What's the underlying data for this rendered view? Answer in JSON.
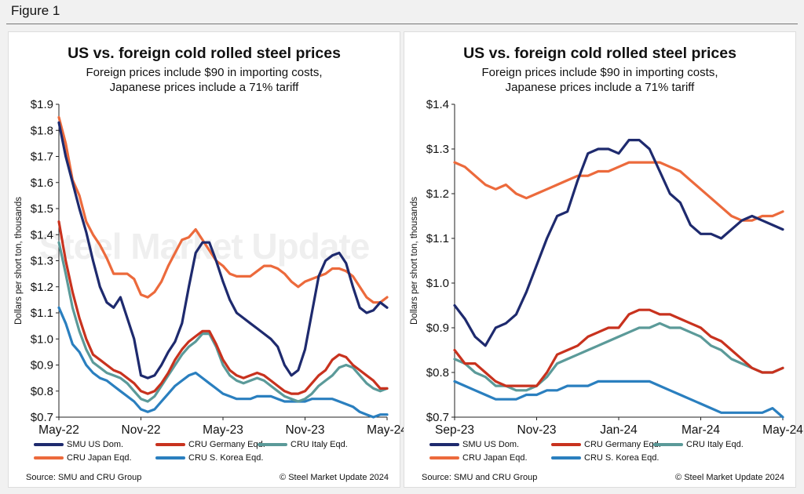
{
  "figure_label": "Figure 1",
  "watermark": "Steel Market Update",
  "colors": {
    "smu": "#1e2a6e",
    "germany": "#c8321e",
    "italy": "#5b9a99",
    "japan": "#ec6a3c",
    "korea": "#2a7fbf"
  },
  "chart_data": [
    {
      "type": "line",
      "title": "US vs. foreign cold rolled steel prices",
      "subtitle": [
        "Foreign prices include $90 in importing costs,",
        "Japanese prices include a 71% tariff"
      ],
      "ylabel": "Dollars per short ton, thousands",
      "ylim": [
        0.7,
        1.9
      ],
      "yticks": [
        0.7,
        0.8,
        0.9,
        1.0,
        1.1,
        1.2,
        1.3,
        1.4,
        1.5,
        1.6,
        1.7,
        1.8,
        1.9
      ],
      "ytick_labels": [
        "$0.7",
        "$0.8",
        "$0.9",
        "$1.0",
        "$1.1",
        "$1.2",
        "$1.3",
        "$1.4",
        "$1.5",
        "$1.6",
        "$1.7",
        "$1.8",
        "$1.9"
      ],
      "xlim": [
        0,
        24
      ],
      "xtick_positions": [
        0,
        6,
        12,
        18,
        24
      ],
      "xtick_labels": [
        "May-22",
        "Nov-22",
        "May-23",
        "Nov-23",
        "May-24"
      ],
      "series": [
        {
          "name": "SMU US Dom.",
          "color_key": "smu",
          "x": [
            0,
            0.5,
            1,
            1.5,
            2,
            2.5,
            3,
            3.5,
            4,
            4.5,
            5,
            5.5,
            6,
            6.5,
            7,
            7.5,
            8,
            8.5,
            9,
            9.5,
            10,
            10.5,
            11,
            11.5,
            12,
            12.5,
            13,
            13.5,
            14,
            14.5,
            15,
            15.5,
            16,
            16.5,
            17,
            17.5,
            18,
            18.5,
            19,
            19.5,
            20,
            20.5,
            21,
            21.5,
            22,
            22.5,
            23,
            23.5,
            24
          ],
          "values": [
            1.83,
            1.7,
            1.6,
            1.5,
            1.41,
            1.3,
            1.2,
            1.14,
            1.12,
            1.16,
            1.08,
            1.0,
            0.86,
            0.85,
            0.86,
            0.9,
            0.95,
            0.99,
            1.06,
            1.2,
            1.33,
            1.37,
            1.37,
            1.3,
            1.22,
            1.15,
            1.1,
            1.08,
            1.06,
            1.04,
            1.02,
            1.0,
            0.97,
            0.9,
            0.86,
            0.88,
            0.96,
            1.1,
            1.24,
            1.3,
            1.32,
            1.33,
            1.29,
            1.2,
            1.12,
            1.1,
            1.11,
            1.14,
            1.12
          ]
        },
        {
          "name": "CRU Germany Eqd.",
          "color_key": "germany",
          "x": [
            0,
            0.5,
            1,
            1.5,
            2,
            2.5,
            3,
            3.5,
            4,
            4.5,
            5,
            5.5,
            6,
            6.5,
            7,
            7.5,
            8,
            8.5,
            9,
            9.5,
            10,
            10.5,
            11,
            11.5,
            12,
            12.5,
            13,
            13.5,
            14,
            14.5,
            15,
            15.5,
            16,
            16.5,
            17,
            17.5,
            18,
            18.5,
            19,
            19.5,
            20,
            20.5,
            21,
            21.5,
            22,
            22.5,
            23,
            23.5,
            24
          ],
          "values": [
            1.45,
            1.3,
            1.18,
            1.08,
            1.0,
            0.94,
            0.92,
            0.9,
            0.88,
            0.87,
            0.85,
            0.83,
            0.8,
            0.79,
            0.8,
            0.83,
            0.87,
            0.92,
            0.96,
            0.99,
            1.01,
            1.03,
            1.03,
            0.98,
            0.92,
            0.88,
            0.86,
            0.85,
            0.86,
            0.87,
            0.86,
            0.84,
            0.82,
            0.8,
            0.79,
            0.79,
            0.8,
            0.83,
            0.86,
            0.88,
            0.92,
            0.94,
            0.93,
            0.9,
            0.88,
            0.86,
            0.84,
            0.81,
            0.81
          ]
        },
        {
          "name": "CRU Italy Eqd.",
          "color_key": "italy",
          "x": [
            0,
            0.5,
            1,
            1.5,
            2,
            2.5,
            3,
            3.5,
            4,
            4.5,
            5,
            5.5,
            6,
            6.5,
            7,
            7.5,
            8,
            8.5,
            9,
            9.5,
            10,
            10.5,
            11,
            11.5,
            12,
            12.5,
            13,
            13.5,
            14,
            14.5,
            15,
            15.5,
            16,
            16.5,
            17,
            17.5,
            18,
            18.5,
            19,
            19.5,
            20,
            20.5,
            21,
            21.5,
            22,
            22.5,
            23,
            23.5,
            24
          ],
          "values": [
            1.37,
            1.25,
            1.12,
            1.03,
            0.96,
            0.91,
            0.89,
            0.87,
            0.86,
            0.85,
            0.83,
            0.8,
            0.77,
            0.76,
            0.78,
            0.82,
            0.86,
            0.9,
            0.94,
            0.97,
            0.99,
            1.02,
            1.02,
            0.97,
            0.9,
            0.86,
            0.84,
            0.83,
            0.84,
            0.85,
            0.84,
            0.82,
            0.8,
            0.78,
            0.77,
            0.76,
            0.77,
            0.79,
            0.82,
            0.84,
            0.86,
            0.89,
            0.9,
            0.89,
            0.86,
            0.83,
            0.81,
            0.8,
            0.81
          ]
        },
        {
          "name": "CRU Japan Eqd.",
          "color_key": "japan",
          "x": [
            0,
            0.5,
            1,
            1.5,
            2,
            2.5,
            3,
            3.5,
            4,
            4.5,
            5,
            5.5,
            6,
            6.5,
            7,
            7.5,
            8,
            8.5,
            9,
            9.5,
            10,
            10.5,
            11,
            11.5,
            12,
            12.5,
            13,
            13.5,
            14,
            14.5,
            15,
            15.5,
            16,
            16.5,
            17,
            17.5,
            18,
            18.5,
            19,
            19.5,
            20,
            20.5,
            21,
            21.5,
            22,
            22.5,
            23,
            23.5,
            24
          ],
          "values": [
            1.85,
            1.75,
            1.61,
            1.55,
            1.45,
            1.4,
            1.36,
            1.31,
            1.25,
            1.25,
            1.25,
            1.23,
            1.17,
            1.16,
            1.18,
            1.22,
            1.28,
            1.33,
            1.38,
            1.39,
            1.42,
            1.38,
            1.34,
            1.3,
            1.28,
            1.25,
            1.24,
            1.24,
            1.24,
            1.26,
            1.28,
            1.28,
            1.27,
            1.25,
            1.22,
            1.2,
            1.22,
            1.23,
            1.24,
            1.25,
            1.27,
            1.27,
            1.26,
            1.24,
            1.2,
            1.16,
            1.14,
            1.14,
            1.16
          ]
        },
        {
          "name": "CRU S. Korea Eqd.",
          "color_key": "korea",
          "x": [
            0,
            0.5,
            1,
            1.5,
            2,
            2.5,
            3,
            3.5,
            4,
            4.5,
            5,
            5.5,
            6,
            6.5,
            7,
            7.5,
            8,
            8.5,
            9,
            9.5,
            10,
            10.5,
            11,
            11.5,
            12,
            12.5,
            13,
            13.5,
            14,
            14.5,
            15,
            15.5,
            16,
            16.5,
            17,
            17.5,
            18,
            18.5,
            19,
            19.5,
            20,
            20.5,
            21,
            21.5,
            22,
            22.5,
            23,
            23.5,
            24
          ],
          "values": [
            1.12,
            1.06,
            0.98,
            0.95,
            0.9,
            0.87,
            0.85,
            0.84,
            0.82,
            0.8,
            0.78,
            0.76,
            0.73,
            0.72,
            0.73,
            0.76,
            0.79,
            0.82,
            0.84,
            0.86,
            0.87,
            0.85,
            0.83,
            0.81,
            0.79,
            0.78,
            0.77,
            0.77,
            0.77,
            0.78,
            0.78,
            0.78,
            0.77,
            0.76,
            0.76,
            0.76,
            0.76,
            0.77,
            0.77,
            0.77,
            0.77,
            0.76,
            0.75,
            0.74,
            0.72,
            0.71,
            0.7,
            0.71,
            0.71
          ]
        }
      ]
    },
    {
      "type": "line",
      "title": "US vs. foreign cold rolled steel prices",
      "subtitle": [
        "Foreign prices include $90 in importing costs,",
        "Japanese prices include a 71% tariff"
      ],
      "ylabel": "Dollars per short ton, thousands",
      "ylim": [
        0.7,
        1.4
      ],
      "yticks": [
        0.7,
        0.8,
        0.9,
        1.0,
        1.1,
        1.2,
        1.3,
        1.4
      ],
      "ytick_labels": [
        "$0.7",
        "$0.8",
        "$0.9",
        "$1.0",
        "$1.1",
        "$1.2",
        "$1.3",
        "$1.4"
      ],
      "xlim": [
        0,
        8
      ],
      "xtick_positions": [
        0,
        2,
        4,
        6,
        8
      ],
      "xtick_labels": [
        "Sep-23",
        "Nov-23",
        "Jan-24",
        "Mar-24",
        "May-24"
      ],
      "series": [
        {
          "name": "SMU US Dom.",
          "color_key": "smu",
          "x": [
            0,
            0.25,
            0.5,
            0.75,
            1,
            1.25,
            1.5,
            1.75,
            2,
            2.25,
            2.5,
            2.75,
            3,
            3.25,
            3.5,
            3.75,
            4,
            4.25,
            4.5,
            4.75,
            5,
            5.25,
            5.5,
            5.75,
            6,
            6.25,
            6.5,
            6.75,
            7,
            7.25,
            7.5,
            7.75,
            8
          ],
          "values": [
            0.95,
            0.92,
            0.88,
            0.86,
            0.9,
            0.91,
            0.93,
            0.98,
            1.04,
            1.1,
            1.15,
            1.16,
            1.23,
            1.29,
            1.3,
            1.3,
            1.29,
            1.32,
            1.32,
            1.3,
            1.25,
            1.2,
            1.18,
            1.13,
            1.11,
            1.11,
            1.1,
            1.12,
            1.14,
            1.15,
            1.14,
            1.13,
            1.12
          ]
        },
        {
          "name": "CRU Germany Eqd.",
          "color_key": "germany",
          "x": [
            0,
            0.25,
            0.5,
            0.75,
            1,
            1.25,
            1.5,
            1.75,
            2,
            2.25,
            2.5,
            2.75,
            3,
            3.25,
            3.5,
            3.75,
            4,
            4.25,
            4.5,
            4.75,
            5,
            5.25,
            5.5,
            5.75,
            6,
            6.25,
            6.5,
            6.75,
            7,
            7.25,
            7.5,
            7.75,
            8
          ],
          "values": [
            0.85,
            0.82,
            0.82,
            0.8,
            0.78,
            0.77,
            0.77,
            0.77,
            0.77,
            0.8,
            0.84,
            0.85,
            0.86,
            0.88,
            0.89,
            0.9,
            0.9,
            0.93,
            0.94,
            0.94,
            0.93,
            0.93,
            0.92,
            0.91,
            0.9,
            0.88,
            0.87,
            0.85,
            0.83,
            0.81,
            0.8,
            0.8,
            0.81
          ]
        },
        {
          "name": "CRU Italy Eqd.",
          "color_key": "italy",
          "x": [
            0,
            0.25,
            0.5,
            0.75,
            1,
            1.25,
            1.5,
            1.75,
            2,
            2.25,
            2.5,
            2.75,
            3,
            3.25,
            3.5,
            3.75,
            4,
            4.25,
            4.5,
            4.75,
            5,
            5.25,
            5.5,
            5.75,
            6,
            6.25,
            6.5,
            6.75,
            7,
            7.25,
            7.5,
            7.75,
            8
          ],
          "values": [
            0.83,
            0.82,
            0.8,
            0.79,
            0.77,
            0.77,
            0.76,
            0.76,
            0.77,
            0.79,
            0.82,
            0.83,
            0.84,
            0.85,
            0.86,
            0.87,
            0.88,
            0.89,
            0.9,
            0.9,
            0.91,
            0.9,
            0.9,
            0.89,
            0.88,
            0.86,
            0.85,
            0.83,
            0.82,
            0.81,
            0.8,
            0.8,
            0.81
          ]
        },
        {
          "name": "CRU Japan Eqd.",
          "color_key": "japan",
          "x": [
            0,
            0.25,
            0.5,
            0.75,
            1,
            1.25,
            1.5,
            1.75,
            2,
            2.25,
            2.5,
            2.75,
            3,
            3.25,
            3.5,
            3.75,
            4,
            4.25,
            4.5,
            4.75,
            5,
            5.25,
            5.5,
            5.75,
            6,
            6.25,
            6.5,
            6.75,
            7,
            7.25,
            7.5,
            7.75,
            8
          ],
          "values": [
            1.27,
            1.26,
            1.24,
            1.22,
            1.21,
            1.22,
            1.2,
            1.19,
            1.2,
            1.21,
            1.22,
            1.23,
            1.24,
            1.24,
            1.25,
            1.25,
            1.26,
            1.27,
            1.27,
            1.27,
            1.27,
            1.26,
            1.25,
            1.23,
            1.21,
            1.19,
            1.17,
            1.15,
            1.14,
            1.14,
            1.15,
            1.15,
            1.16
          ]
        },
        {
          "name": "CRU S. Korea Eqd.",
          "color_key": "korea",
          "x": [
            0,
            0.25,
            0.5,
            0.75,
            1,
            1.25,
            1.5,
            1.75,
            2,
            2.25,
            2.5,
            2.75,
            3,
            3.25,
            3.5,
            3.75,
            4,
            4.25,
            4.5,
            4.75,
            5,
            5.25,
            5.5,
            5.75,
            6,
            6.25,
            6.5,
            6.75,
            7,
            7.25,
            7.5,
            7.75,
            8
          ],
          "values": [
            0.78,
            0.77,
            0.76,
            0.75,
            0.74,
            0.74,
            0.74,
            0.75,
            0.75,
            0.76,
            0.76,
            0.77,
            0.77,
            0.77,
            0.78,
            0.78,
            0.78,
            0.78,
            0.78,
            0.78,
            0.77,
            0.76,
            0.75,
            0.74,
            0.73,
            0.72,
            0.71,
            0.71,
            0.71,
            0.71,
            0.71,
            0.72,
            0.7
          ]
        }
      ]
    }
  ],
  "source": "Source: SMU and CRU Group",
  "copyright": "© Steel Market Update 2024"
}
